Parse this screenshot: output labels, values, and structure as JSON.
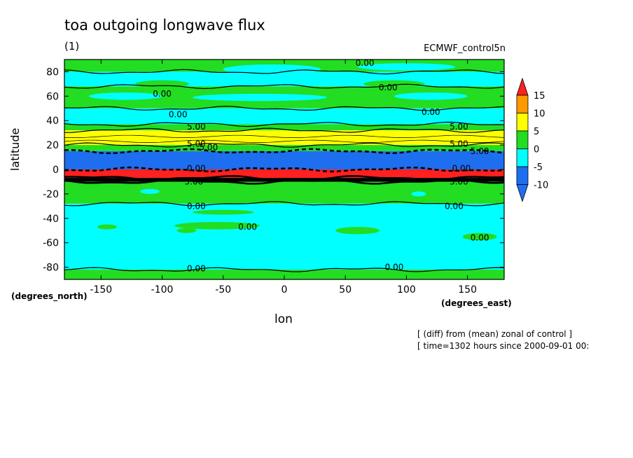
{
  "title": "toa outgoing longwave flux",
  "subtitle": "(1)",
  "dataset_label": "ECMWF_control5n",
  "notes": [
    "[ (diff) from (mean) zonal of control ]",
    "[ time=1302 hours since 2000-09-01 00:"
  ],
  "chart_data": {
    "type": "heatmap",
    "title": "toa outgoing longwave flux",
    "xlabel": "lon",
    "ylabel": "latitude",
    "x_unit_label": "(degrees_east)",
    "y_unit_label": "(degrees_north)",
    "xlim": [
      -180,
      180
    ],
    "ylim": [
      -90,
      90
    ],
    "xticks": [
      -150,
      -100,
      -50,
      0,
      50,
      100,
      150
    ],
    "xtick_labels": [
      "-150",
      "-100",
      "-50",
      "0",
      "50",
      "100",
      "150"
    ],
    "yticks": [
      -80,
      -60,
      -40,
      -20,
      0,
      20,
      40,
      60,
      80
    ],
    "ytick_labels": [
      "-80",
      "-60",
      "-40",
      "-20",
      "0",
      "20",
      "40",
      "60",
      "80"
    ],
    "colorbar": {
      "levels": [
        -10,
        -5,
        0,
        5,
        10,
        15
      ],
      "level_labels": [
        "-10",
        "-5",
        "0",
        "5",
        "10",
        "15"
      ],
      "colors": [
        "#1e6ef0",
        "#00ffff",
        "#22dd22",
        "#ffff00",
        "#ff9900",
        "#ff2020"
      ]
    },
    "bands": [
      {
        "lat_min": 80,
        "lat_max": 90,
        "category": "0 to 5",
        "color": "#22dd22"
      },
      {
        "lat_min": 68,
        "lat_max": 80,
        "category": "-5 to 0",
        "color": "#00ffff"
      },
      {
        "lat_min": 50,
        "lat_max": 68,
        "category": "0 to 5",
        "color": "#22dd22"
      },
      {
        "lat_min": 37,
        "lat_max": 50,
        "category": "-5 to 0",
        "color": "#00ffff"
      },
      {
        "lat_min": 32,
        "lat_max": 37,
        "category": "0 to 5",
        "color": "#22dd22"
      },
      {
        "lat_min": 20,
        "lat_max": 32,
        "category": "5 to 10",
        "color": "#ffff00"
      },
      {
        "lat_min": 15,
        "lat_max": 20,
        "category": "0 to 5",
        "color": "#22dd22"
      },
      {
        "lat_min": 0,
        "lat_max": 15,
        "category": "-10 to -5",
        "color": "#1e6ef0"
      },
      {
        "lat_min": -7,
        "lat_max": 0,
        "category": ">15",
        "color": "#ff2020"
      },
      {
        "lat_min": -10,
        "lat_max": -7,
        "category": "strong gradient",
        "color": "#000000"
      },
      {
        "lat_min": -28,
        "lat_max": -10,
        "category": "0 to 5",
        "color": "#22dd22"
      },
      {
        "lat_min": -82,
        "lat_max": -28,
        "category": "-5 to 0",
        "color": "#00ffff"
      },
      {
        "lat_min": -90,
        "lat_max": -82,
        "category": "0 to 5",
        "color": "#22dd22"
      }
    ],
    "contour_labels": [
      {
        "lon": 66,
        "lat": 87,
        "text": "0.00"
      },
      {
        "lon": 85,
        "lat": 67,
        "text": "0.00"
      },
      {
        "lon": -100,
        "lat": 62,
        "text": "0.00"
      },
      {
        "lon": -87,
        "lat": 45,
        "text": "0.00"
      },
      {
        "lon": 120,
        "lat": 47,
        "text": "0.00"
      },
      {
        "lon": -72,
        "lat": 35,
        "text": "5.00"
      },
      {
        "lon": 143,
        "lat": 35,
        "text": "5.00"
      },
      {
        "lon": -72,
        "lat": 21,
        "text": "5.00"
      },
      {
        "lon": 143,
        "lat": 21,
        "text": "5.00"
      },
      {
        "lon": -62,
        "lat": 18,
        "text": "5.00"
      },
      {
        "lon": 160,
        "lat": 15,
        "text": "5.00"
      },
      {
        "lon": -72,
        "lat": 1,
        "text": "0.00"
      },
      {
        "lon": 145,
        "lat": 1,
        "text": "0.00"
      },
      {
        "lon": -74,
        "lat": -10,
        "text": "5.00"
      },
      {
        "lon": 143,
        "lat": -10,
        "text": "5.00"
      },
      {
        "lon": -72,
        "lat": -30,
        "text": "0.00"
      },
      {
        "lon": 139,
        "lat": -30,
        "text": "0.00"
      },
      {
        "lon": -30,
        "lat": -47,
        "text": "0.00"
      },
      {
        "lon": 160,
        "lat": -56,
        "text": "0.00"
      },
      {
        "lon": -72,
        "lat": -81,
        "text": "0.00"
      },
      {
        "lon": 90,
        "lat": -80,
        "text": "0.00"
      }
    ]
  }
}
